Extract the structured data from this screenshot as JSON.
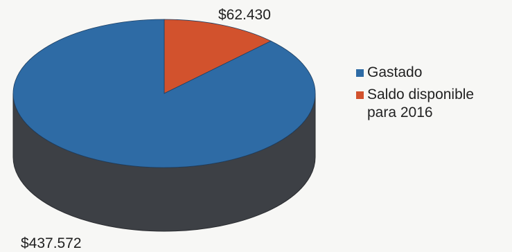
{
  "chart_data": {
    "type": "pie",
    "style": "3d",
    "title": "",
    "slices": [
      {
        "label": "Gastado",
        "value": 437572,
        "display": "$437.572",
        "color": "#2e6ba5"
      },
      {
        "label": "Saldo disponible para 2016",
        "value": 62430,
        "display": "$62.430",
        "color": "#d2522d"
      }
    ],
    "legend": {
      "position": "right",
      "items": [
        {
          "label": "Gastado",
          "color": "#2e6ba5"
        },
        {
          "label": "Saldo disponible para 2016",
          "color": "#d2522d"
        }
      ]
    }
  }
}
